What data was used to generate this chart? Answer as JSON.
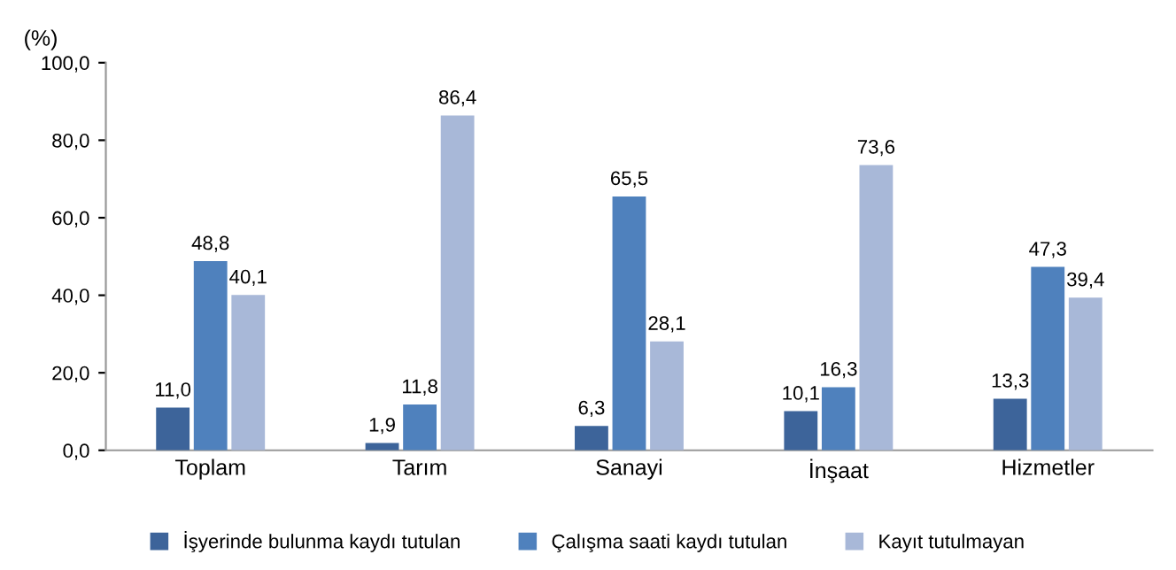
{
  "chart_data": {
    "type": "bar",
    "ylabel": "(%)",
    "categories": [
      "Toplam",
      "Tarım",
      "Sanayi",
      "İnşaat",
      "Hizmetler"
    ],
    "series": [
      {
        "name": "İşyerinde bulunma kaydı tutulan",
        "color": "#3d649a",
        "values": [
          11.0,
          1.9,
          6.3,
          10.1,
          13.3
        ],
        "value_labels": [
          "11,0",
          "1,9",
          "6,3",
          "10,1",
          "13,3"
        ]
      },
      {
        "name": "Çalışma saati kaydı tutulan",
        "color": "#4f81bd",
        "values": [
          48.8,
          11.8,
          65.5,
          16.3,
          47.3
        ],
        "value_labels": [
          "48,8",
          "11,8",
          "65,5",
          "16,3",
          "47,3"
        ]
      },
      {
        "name": "Kayıt tutulmayan",
        "color": "#a8b8d8",
        "values": [
          40.1,
          86.4,
          28.1,
          73.6,
          39.4
        ],
        "value_labels": [
          "40,1",
          "86,4",
          "28,1",
          "73,6",
          "39,4"
        ]
      }
    ],
    "ylim": [
      0,
      100
    ],
    "yticks": [
      {
        "value": 0,
        "label": "0,0"
      },
      {
        "value": 20,
        "label": "20,0"
      },
      {
        "value": 40,
        "label": "40,0"
      },
      {
        "value": 60,
        "label": "60,0"
      },
      {
        "value": 80,
        "label": "80,0"
      },
      {
        "value": 100,
        "label": "100,0"
      }
    ],
    "legend": "bottom",
    "grid": false
  }
}
